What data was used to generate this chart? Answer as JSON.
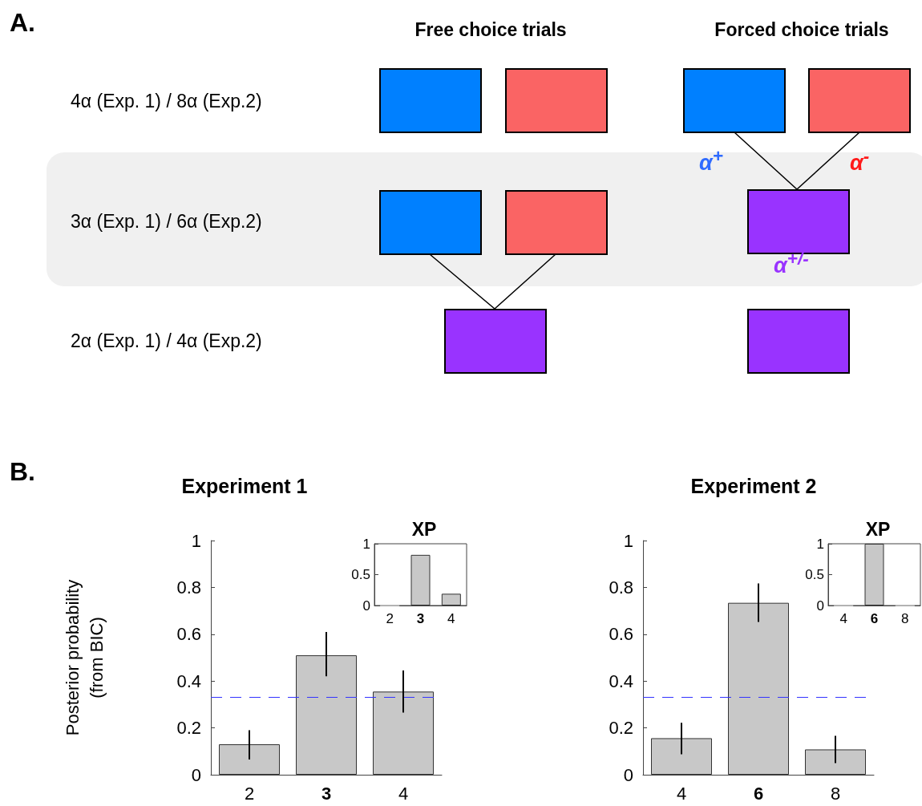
{
  "chart_data": [
    {
      "type": "other",
      "title": "A.",
      "annotations": [
        "Free choice trials",
        "Forced choice trials",
        "4α (Exp. 1) / 8α (Exp.2)",
        "3α (Exp. 1) / 6α (Exp.2)",
        "2α (Exp. 1) / 4α (Exp.2)",
        "α$^{+}$",
        "α$^{-}$",
        "α$^{+/-}$"
      ]
    },
    {
      "type": "bar",
      "title": "Experiment 1",
      "ylabel": "Posterior probability\n(from BIC)",
      "annotations": [
        "B."
      ],
      "categories": [
        "2",
        "3",
        "4"
      ],
      "values": [
        0.13,
        0.51,
        0.355
      ],
      "errors": [
        [
          0.065,
          0.19
        ],
        [
          0.42,
          0.61
        ],
        [
          0.265,
          0.445
        ]
      ],
      "color": "#c8c8c8",
      "ylim": [
        0,
        1
      ],
      "yticks": [
        0,
        0.2,
        0.4,
        0.6,
        0.8,
        1
      ],
      "grid": false,
      "ref_lines": [
        {
          "axis": "y",
          "value": 0.333,
          "color": "#3333ff",
          "line_style": "dashed"
        }
      ]
    },
    {
      "type": "bar",
      "title": "XP",
      "categories": [
        "2",
        "3",
        "4"
      ],
      "values": [
        0,
        0.82,
        0.19
      ],
      "color": "#c8c8c8",
      "ylim": [
        0,
        1
      ],
      "yticks": [
        0,
        0.5,
        1
      ],
      "grid": false
    },
    {
      "type": "bar",
      "title": "Experiment 2",
      "categories": [
        "4",
        "6",
        "8"
      ],
      "values": [
        0.156,
        0.734,
        0.108
      ],
      "errors": [
        [
          0.087,
          0.222
        ],
        [
          0.652,
          0.817
        ],
        [
          0.05,
          0.166
        ]
      ],
      "color": "#c8c8c8",
      "ylim": [
        0,
        1
      ],
      "yticks": [
        0,
        0.2,
        0.4,
        0.6,
        0.8,
        1
      ],
      "grid": false,
      "ref_lines": [
        {
          "axis": "y",
          "value": 0.333,
          "color": "#3333ff",
          "line_style": "dashed"
        }
      ]
    },
    {
      "type": "bar",
      "title": "XP",
      "categories": [
        "4",
        "6",
        "8"
      ],
      "values": [
        0,
        1,
        0
      ],
      "color": "#c8c8c8",
      "ylim": [
        0,
        1
      ],
      "yticks": [
        0,
        0.5,
        1
      ],
      "grid": false
    }
  ]
}
